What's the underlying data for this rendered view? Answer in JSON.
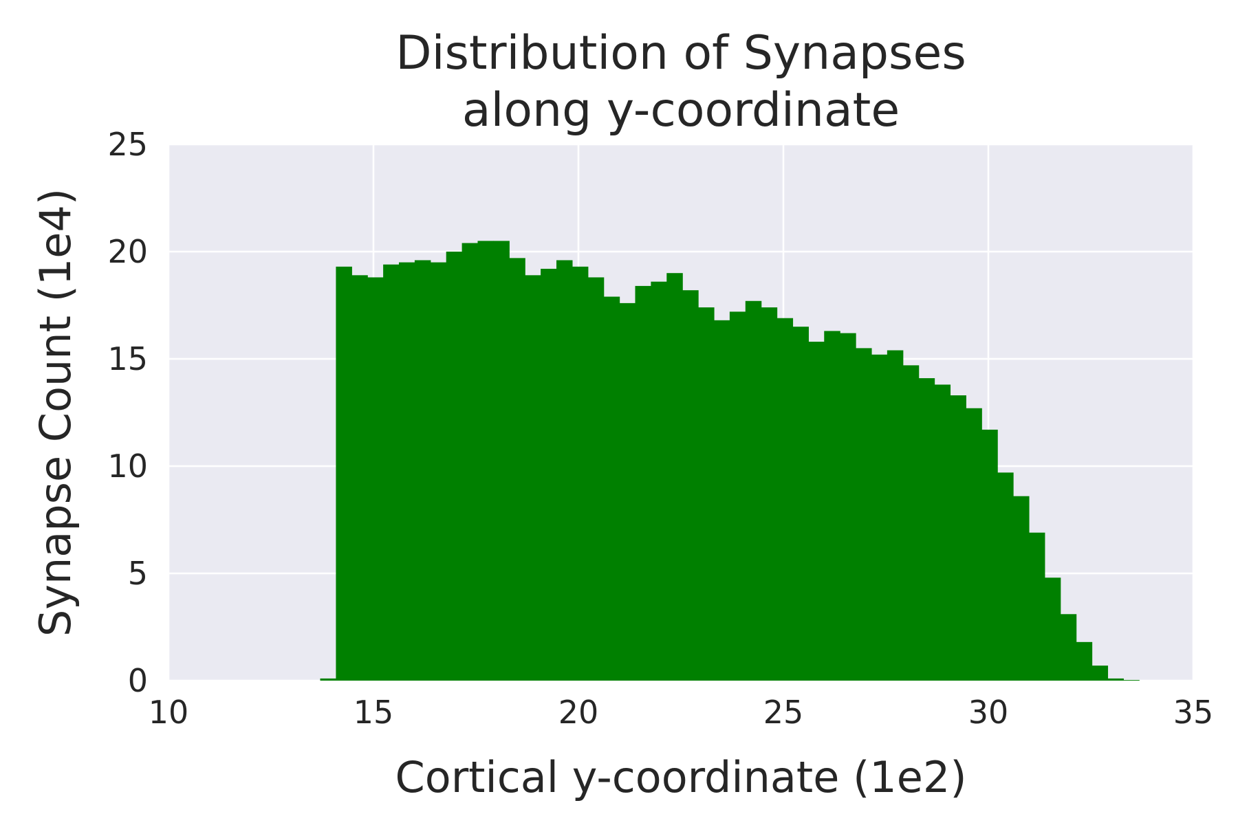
{
  "chart_data": {
    "type": "bar",
    "title_lines": [
      "Distribution of Synapses",
      "along y-coordinate"
    ],
    "xlabel": "Cortical y-coordinate (1e2)",
    "ylabel": "Synapse Count (1e4)",
    "xlim": [
      10,
      35
    ],
    "ylim": [
      0,
      25
    ],
    "xticks": [
      "10",
      "15",
      "20",
      "25",
      "30",
      "35"
    ],
    "yticks": [
      "0",
      "5",
      "10",
      "15",
      "20",
      "25"
    ],
    "grid": true,
    "bar_color": "#008000",
    "background_color": "#EAEAF2",
    "grid_color": "#FFFFFF",
    "bin_start": 13.7,
    "bin_width": 0.3842,
    "values": [
      0.1,
      19.3,
      18.9,
      18.8,
      19.4,
      19.5,
      19.6,
      19.5,
      20.0,
      20.4,
      20.5,
      20.5,
      19.7,
      18.9,
      19.2,
      19.6,
      19.3,
      18.8,
      17.9,
      17.6,
      18.4,
      18.6,
      19.0,
      18.2,
      17.4,
      16.8,
      17.2,
      17.7,
      17.4,
      16.9,
      16.5,
      15.8,
      16.3,
      16.2,
      15.5,
      15.2,
      15.4,
      14.7,
      14.1,
      13.8,
      13.3,
      12.7,
      11.7,
      9.7,
      8.6,
      6.9,
      4.8,
      3.1,
      1.8,
      0.7,
      0.1,
      0.03
    ]
  }
}
